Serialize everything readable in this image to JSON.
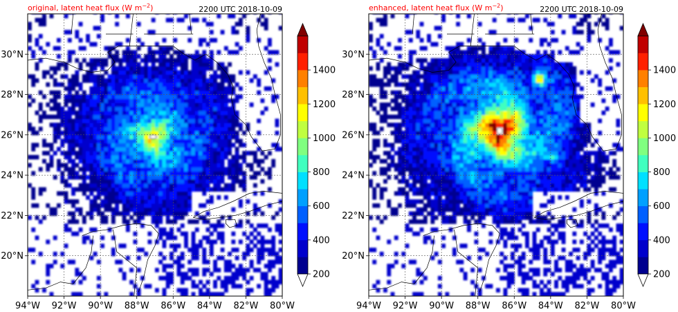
{
  "chart_data": [
    {
      "type": "heatmap",
      "panel": "left",
      "title_left": "original, latent heat flux (W m",
      "title_left_sup": "−2",
      "title_left_end": ")",
      "title_right": "2200 UTC 2018-10-09",
      "x_ticks": [
        "94°W",
        "92°W",
        "90°W",
        "88°W",
        "86°W",
        "84°W",
        "82°W",
        "80°W"
      ],
      "y_ticks": [
        "20°N",
        "22°N",
        "24°N",
        "26°N",
        "28°N",
        "30°N"
      ],
      "xlim": [
        -94,
        -80
      ],
      "ylim": [
        18,
        32
      ],
      "grid": true,
      "max_value": 1000,
      "storm_center": [
        -87.1,
        25.9
      ]
    },
    {
      "type": "heatmap",
      "panel": "right",
      "title_left": "enhanced, latent heat flux (W m",
      "title_left_sup": "−2",
      "title_left_end": ")",
      "title_right": "2200 UTC 2018-10-09",
      "x_ticks": [
        "94°W",
        "92°W",
        "90°W",
        "88°W",
        "86°W",
        "84°W",
        "82°W",
        "80°W"
      ],
      "y_ticks": [
        "20°N",
        "22°N",
        "24°N",
        "26°N",
        "28°N",
        "30°N"
      ],
      "xlim": [
        -94,
        -80
      ],
      "ylim": [
        18,
        32
      ],
      "grid": true,
      "max_value": 1500,
      "storm_center": [
        -86.8,
        26.2
      ]
    }
  ],
  "colorbar": {
    "levels": [
      200,
      300,
      400,
      500,
      600,
      700,
      800,
      900,
      1000,
      1100,
      1200,
      1300,
      1400,
      1500
    ],
    "tick_labels": [
      "200",
      "400",
      "600",
      "800",
      "1000",
      "1200",
      "1400"
    ],
    "colors": [
      "#00008f",
      "#0000cc",
      "#0010ff",
      "#0060ff",
      "#00a0ff",
      "#00e0ff",
      "#40ffbf",
      "#80ff80",
      "#c0ff40",
      "#ffff00",
      "#ffc000",
      "#ff8000",
      "#ff2000",
      "#c00000"
    ],
    "over_color": "#800000",
    "under_color": "#ffffff",
    "extend": "both"
  }
}
